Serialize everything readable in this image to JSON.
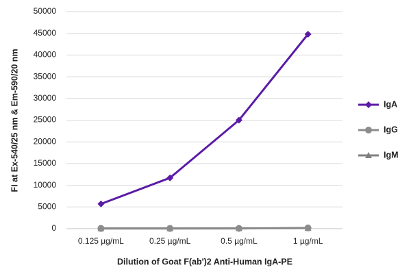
{
  "chart_data": {
    "type": "line",
    "x_label": "Dilution of Goat F(ab')2 Anti-Human IgA-PE",
    "y_label": "FI at Ex-540/25 nm & Em-590/20 nm",
    "categories": [
      "0.125 µg/mL",
      "0.25 µg/mL",
      "0.5 µg/mL",
      "1 µg/mL"
    ],
    "series": [
      {
        "name": "IgA",
        "color": "#5a1ba6",
        "marker": "diamond",
        "values": [
          5700,
          11700,
          25000,
          44800
        ]
      },
      {
        "name": "IgG",
        "color": "#8c8c8c",
        "marker": "circle",
        "values": [
          50,
          50,
          60,
          150
        ]
      },
      {
        "name": "IgM",
        "color": "#808080",
        "marker": "triangle",
        "values": [
          40,
          40,
          50,
          120
        ]
      }
    ],
    "ylim": [
      0,
      50000
    ],
    "yticks": [
      0,
      5000,
      10000,
      15000,
      20000,
      25000,
      30000,
      35000,
      40000,
      45000,
      50000
    ],
    "grid": true,
    "legend": "right"
  }
}
